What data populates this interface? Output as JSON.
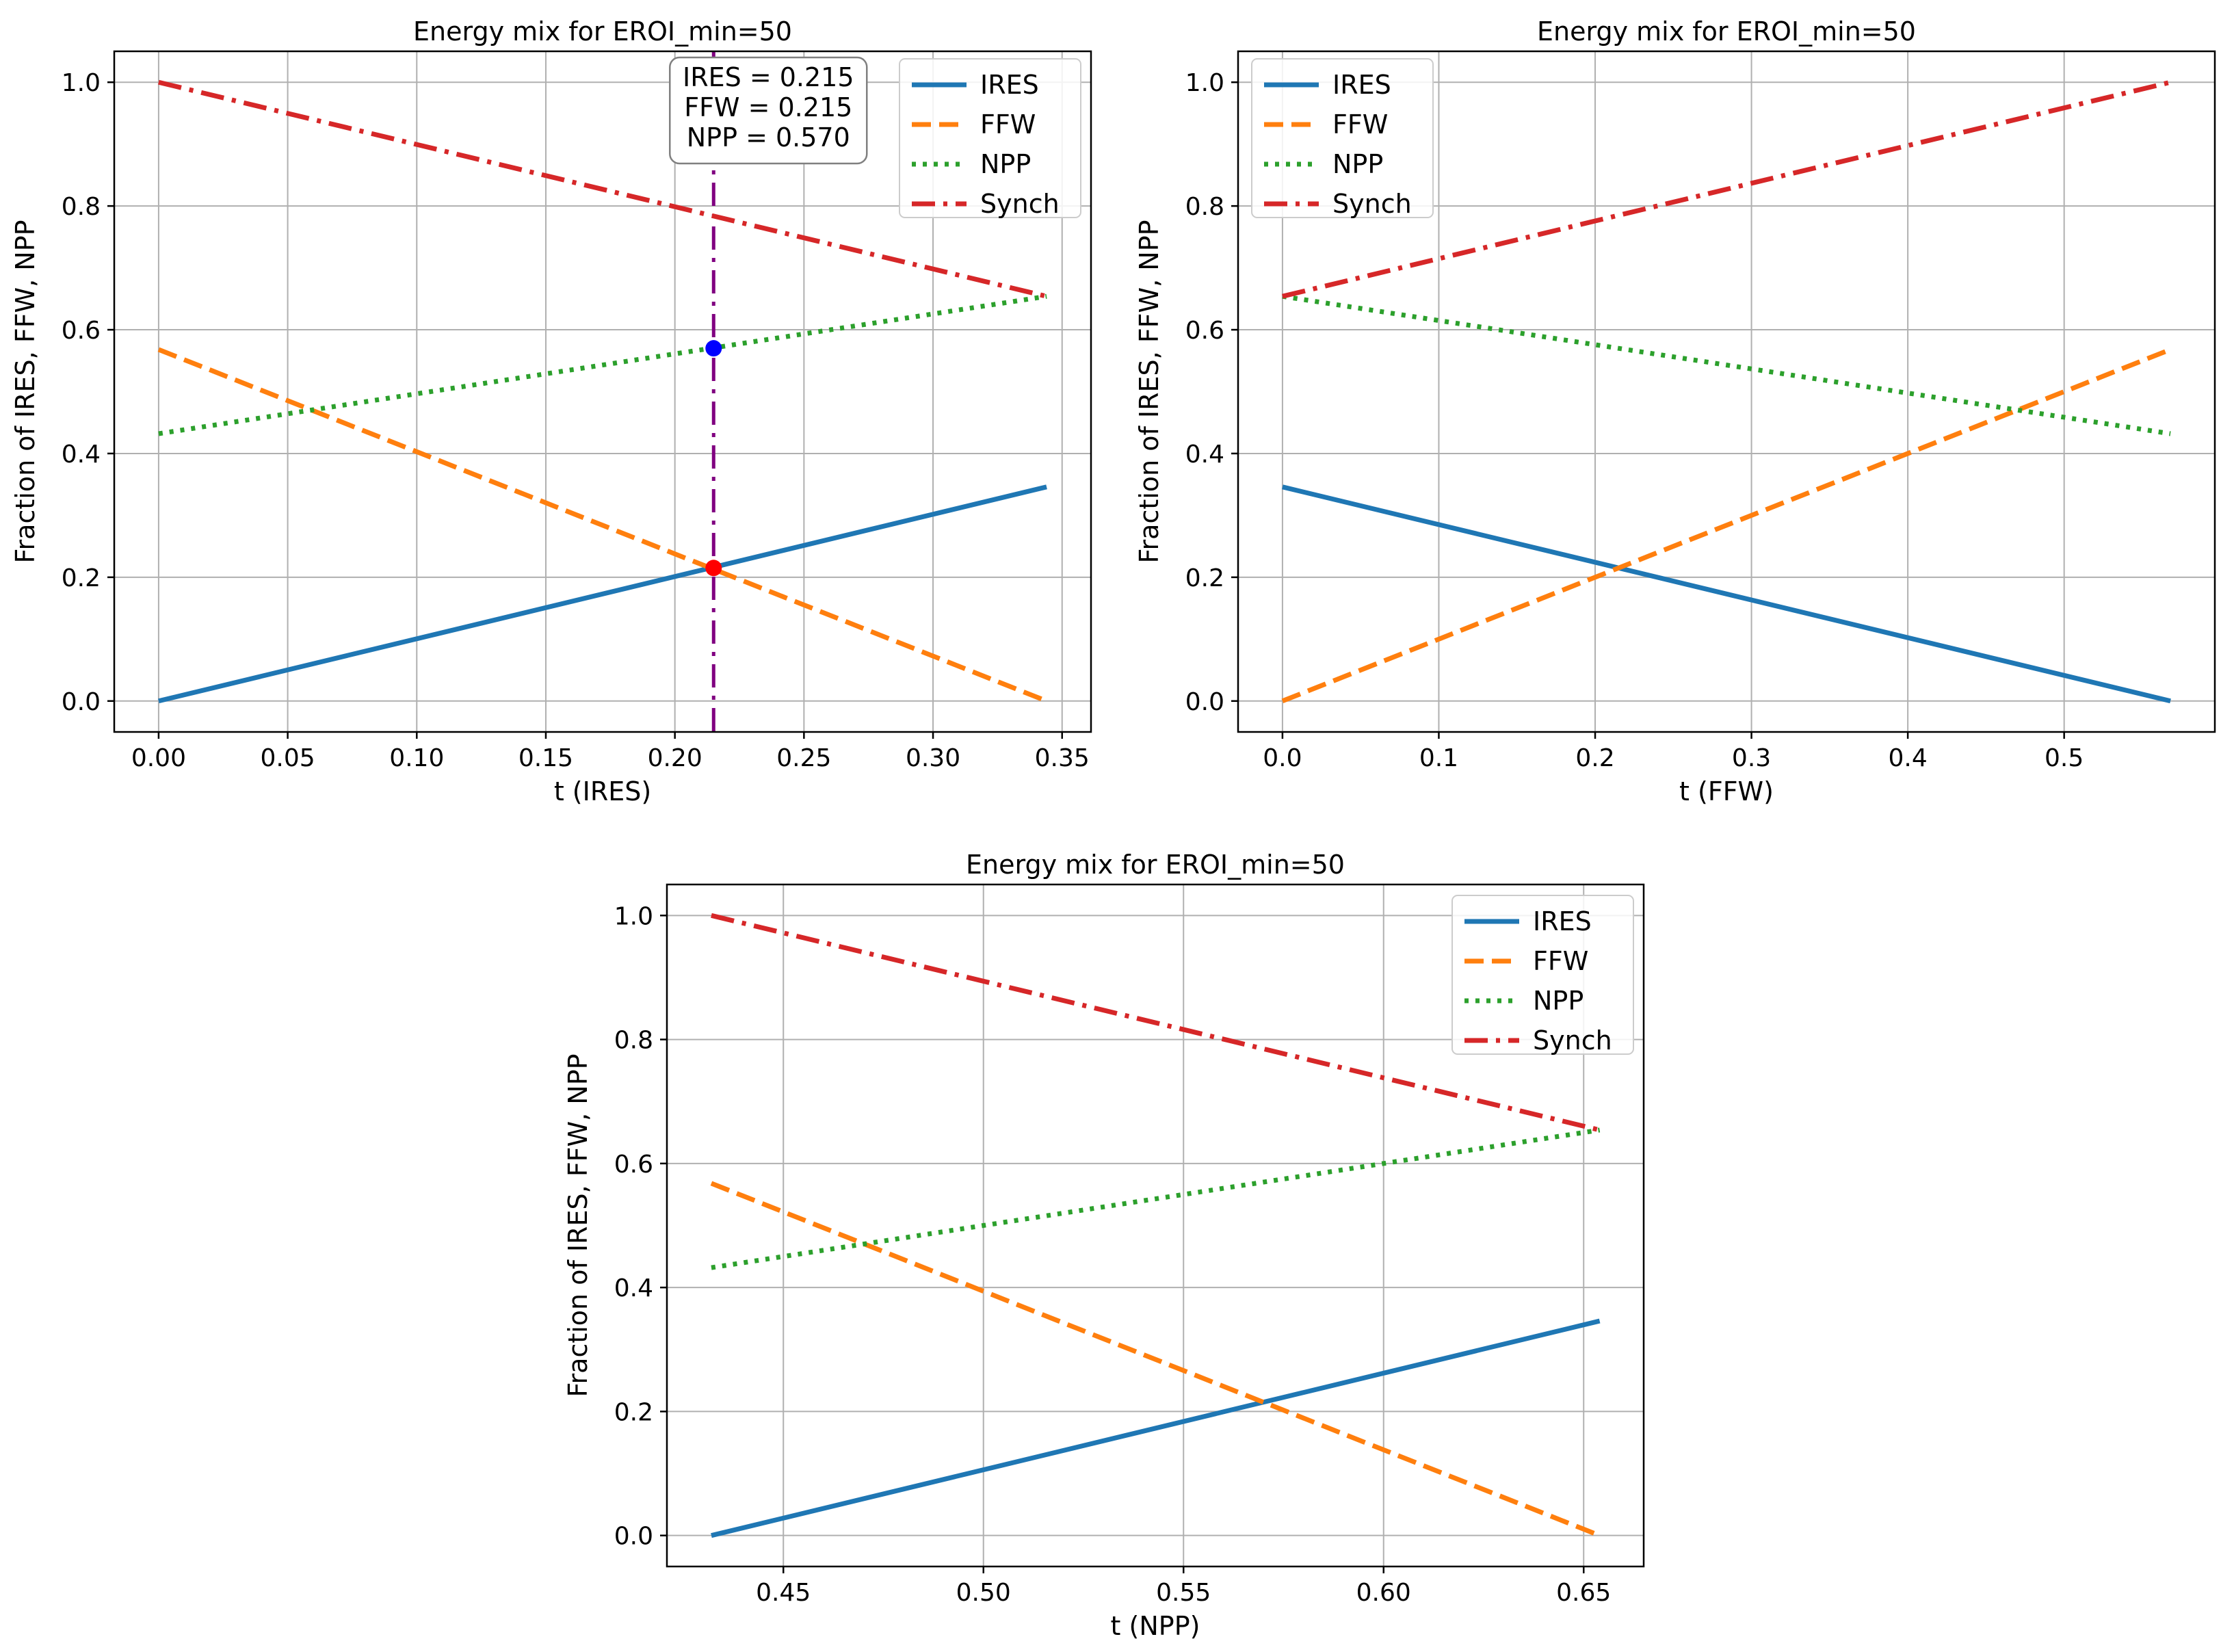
{
  "colors": {
    "IRES": "#1f77b4",
    "FFW": "#ff7f0e",
    "NPP": "#2ca02c",
    "Synch": "#d62728",
    "marker_line": "#800080",
    "marker_blue": "#0000ff",
    "marker_red": "#ff0000",
    "grid": "#b0b0b0"
  },
  "chart_data": [
    {
      "type": "line",
      "title": "Energy mix for EROI_min=50",
      "xlabel": "t (IRES)",
      "ylabel": "Fraction of IRES, FFW, NPP",
      "xlim": [
        -0.0172,
        0.3612
      ],
      "ylim": [
        -0.05,
        1.05
      ],
      "xticks": [
        0.0,
        0.05,
        0.1,
        0.15,
        0.2,
        0.25,
        0.3,
        0.35
      ],
      "xtick_labels": [
        "0.00",
        "0.05",
        "0.10",
        "0.15",
        "0.20",
        "0.25",
        "0.30",
        "0.35"
      ],
      "yticks": [
        0.0,
        0.2,
        0.4,
        0.6,
        0.8,
        1.0
      ],
      "ytick_labels": [
        "0.0",
        "0.2",
        "0.4",
        "0.6",
        "0.8",
        "1.0"
      ],
      "grid": true,
      "legend": "upper right",
      "series": [
        {
          "name": "IRES",
          "style": "solid",
          "x": [
            0.0,
            0.344
          ],
          "y": [
            0.0,
            0.346
          ]
        },
        {
          "name": "FFW",
          "style": "dashed",
          "x": [
            0.0,
            0.344
          ],
          "y": [
            0.568,
            0.0
          ]
        },
        {
          "name": "NPP",
          "style": "dotted",
          "x": [
            0.0,
            0.344
          ],
          "y": [
            0.432,
            0.654
          ]
        },
        {
          "name": "Synch",
          "style": "dashdot",
          "x": [
            0.0,
            0.344
          ],
          "y": [
            1.0,
            0.654
          ]
        }
      ],
      "vline_x": 0.215,
      "points": [
        {
          "x": 0.215,
          "y": 0.57,
          "color": "blue"
        },
        {
          "x": 0.215,
          "y": 0.215,
          "color": "red"
        }
      ],
      "annotation": [
        "IRES = 0.215",
        "FFW = 0.215",
        "NPP = 0.570"
      ]
    },
    {
      "type": "line",
      "title": "Energy mix for EROI_min=50",
      "xlabel": "t (FFW)",
      "ylabel": "Fraction of IRES, FFW, NPP",
      "xlim": [
        -0.0284,
        0.5964
      ],
      "ylim": [
        -0.05,
        1.05
      ],
      "xticks": [
        0.0,
        0.1,
        0.2,
        0.3,
        0.4,
        0.5
      ],
      "xtick_labels": [
        "0.0",
        "0.1",
        "0.2",
        "0.3",
        "0.4",
        "0.5"
      ],
      "yticks": [
        0.0,
        0.2,
        0.4,
        0.6,
        0.8,
        1.0
      ],
      "ytick_labels": [
        "0.0",
        "0.2",
        "0.4",
        "0.6",
        "0.8",
        "1.0"
      ],
      "grid": true,
      "legend": "upper left",
      "series": [
        {
          "name": "IRES",
          "style": "solid",
          "x": [
            0.0,
            0.568
          ],
          "y": [
            0.346,
            0.0
          ]
        },
        {
          "name": "FFW",
          "style": "dashed",
          "x": [
            0.0,
            0.568
          ],
          "y": [
            0.0,
            0.568
          ]
        },
        {
          "name": "NPP",
          "style": "dotted",
          "x": [
            0.0,
            0.568
          ],
          "y": [
            0.654,
            0.432
          ]
        },
        {
          "name": "Synch",
          "style": "dashdot",
          "x": [
            0.0,
            0.568
          ],
          "y": [
            0.654,
            1.0
          ]
        }
      ]
    },
    {
      "type": "line",
      "title": "Energy mix for EROI_min=50",
      "xlabel": "t (NPP)",
      "ylabel": "Fraction of IRES, FFW, NPP",
      "xlim": [
        0.4209,
        0.665
      ],
      "ylim": [
        -0.05,
        1.05
      ],
      "xticks": [
        0.45,
        0.5,
        0.55,
        0.6,
        0.65
      ],
      "xtick_labels": [
        "0.45",
        "0.50",
        "0.55",
        "0.60",
        "0.65"
      ],
      "yticks": [
        0.0,
        0.2,
        0.4,
        0.6,
        0.8,
        1.0
      ],
      "ytick_labels": [
        "0.0",
        "0.2",
        "0.4",
        "0.6",
        "0.8",
        "1.0"
      ],
      "grid": true,
      "legend": "upper right",
      "series": [
        {
          "name": "IRES",
          "style": "solid",
          "x": [
            0.432,
            0.654
          ],
          "y": [
            0.0,
            0.346
          ]
        },
        {
          "name": "FFW",
          "style": "dashed",
          "x": [
            0.432,
            0.654
          ],
          "y": [
            0.568,
            0.0
          ]
        },
        {
          "name": "NPP",
          "style": "dotted",
          "x": [
            0.432,
            0.654
          ],
          "y": [
            0.432,
            0.654
          ]
        },
        {
          "name": "Synch",
          "style": "dashdot",
          "x": [
            0.432,
            0.654
          ],
          "y": [
            1.0,
            0.654
          ]
        }
      ]
    }
  ]
}
